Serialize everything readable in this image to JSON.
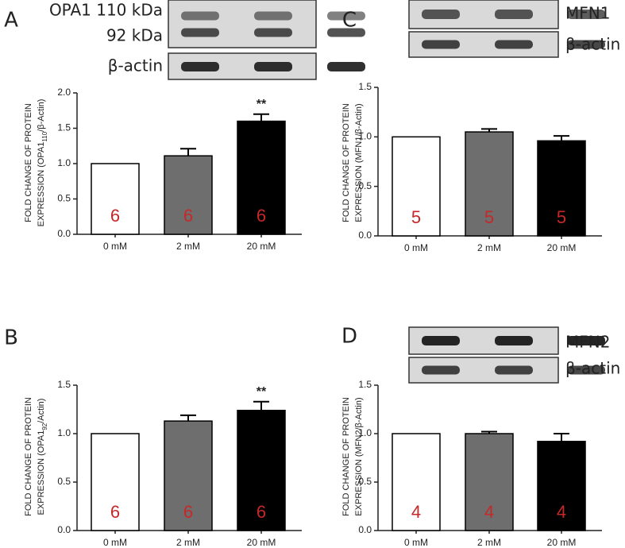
{
  "chart_data": [
    {
      "type": "bar",
      "panel": "A",
      "blot_labels": [
        "OPA1 110 kDa",
        "92 kDa",
        "β-actin"
      ],
      "ylabel": {
        "line1": "FOLD CHANGE OF PROTEIN",
        "line2": [
          "EXPRESSION (OPA1",
          "110",
          "/β-Actin)"
        ]
      },
      "categories": [
        "0 mM",
        "2 mM",
        "20 mM"
      ],
      "values": [
        1.0,
        1.11,
        1.6
      ],
      "errors": [
        null,
        0.1,
        0.1
      ],
      "colors": [
        "#ffffff",
        "#6e6e6e",
        "#000000"
      ],
      "n_labels": [
        6,
        6,
        6
      ],
      "significance": [
        null,
        null,
        "**"
      ],
      "ylim": [
        0,
        2
      ],
      "yticks": [
        {
          "value": 0,
          "label": "0.0"
        },
        {
          "value": 0.5,
          "label": "0.5"
        },
        {
          "value": 1,
          "label": "1.0"
        },
        {
          "value": 1.5,
          "label": "1.5"
        },
        {
          "value": 2,
          "label": "2.0"
        }
      ]
    },
    {
      "type": "bar",
      "panel": "C",
      "blot_labels": [
        "MFN1",
        "β-actin"
      ],
      "ylabel": {
        "line1": "FOLD CHANGE OF PROTEIN",
        "line2": [
          "EXPRESSION (MFN1/β-Actin)"
        ]
      },
      "categories": [
        "0 mM",
        "2 mM",
        "20 mM"
      ],
      "values": [
        1.0,
        1.05,
        0.96
      ],
      "errors": [
        null,
        0.03,
        0.05
      ],
      "colors": [
        "#ffffff",
        "#6e6e6e",
        "#000000"
      ],
      "n_labels": [
        5,
        5,
        5
      ],
      "significance": [
        null,
        null,
        null
      ],
      "ylim": [
        0,
        1.5
      ],
      "yticks": [
        {
          "value": 0,
          "label": "0.0"
        },
        {
          "value": 0.5,
          "label": "0.5"
        },
        {
          "value": 1,
          "label": "1.0"
        },
        {
          "value": 1.5,
          "label": "1.5"
        }
      ]
    },
    {
      "type": "bar",
      "panel": "B",
      "blot_labels": [],
      "ylabel": {
        "line1": "FOLD CHANGE OF PROTEIN",
        "line2": [
          "EXPRESSION (OPA1",
          "92",
          "/Actin)"
        ]
      },
      "categories": [
        "0 mM",
        "2 mM",
        "20 mM"
      ],
      "values": [
        1.0,
        1.13,
        1.24
      ],
      "errors": [
        null,
        0.06,
        0.09
      ],
      "colors": [
        "#ffffff",
        "#6e6e6e",
        "#000000"
      ],
      "n_labels": [
        6,
        6,
        6
      ],
      "significance": [
        null,
        null,
        "**"
      ],
      "ylim": [
        0,
        1.5
      ],
      "yticks": [
        {
          "value": 0,
          "label": "0.0"
        },
        {
          "value": 0.5,
          "label": "0.5"
        },
        {
          "value": 1,
          "label": "1.0"
        },
        {
          "value": 1.5,
          "label": "1.5"
        }
      ]
    },
    {
      "type": "bar",
      "panel": "D",
      "blot_labels": [
        "MFN2",
        "β-actin"
      ],
      "ylabel": {
        "line1": "FOLD CHANGE OF PROTEIN",
        "line2": [
          "EXPRESSION (MFN2/β-Actin)"
        ]
      },
      "categories": [
        "0 mM",
        "2 mM",
        "20 mM"
      ],
      "values": [
        1.0,
        1.0,
        0.92
      ],
      "errors": [
        null,
        0.02,
        0.08
      ],
      "colors": [
        "#ffffff",
        "#6e6e6e",
        "#000000"
      ],
      "n_labels": [
        4,
        4,
        4
      ],
      "significance": [
        null,
        null,
        null
      ],
      "ylim": [
        0,
        1.5
      ],
      "yticks": [
        {
          "value": 0,
          "label": "0.0"
        },
        {
          "value": 0.5,
          "label": "0.5"
        },
        {
          "value": 1,
          "label": "1.0"
        },
        {
          "value": 1.5,
          "label": "1.5"
        }
      ]
    }
  ]
}
